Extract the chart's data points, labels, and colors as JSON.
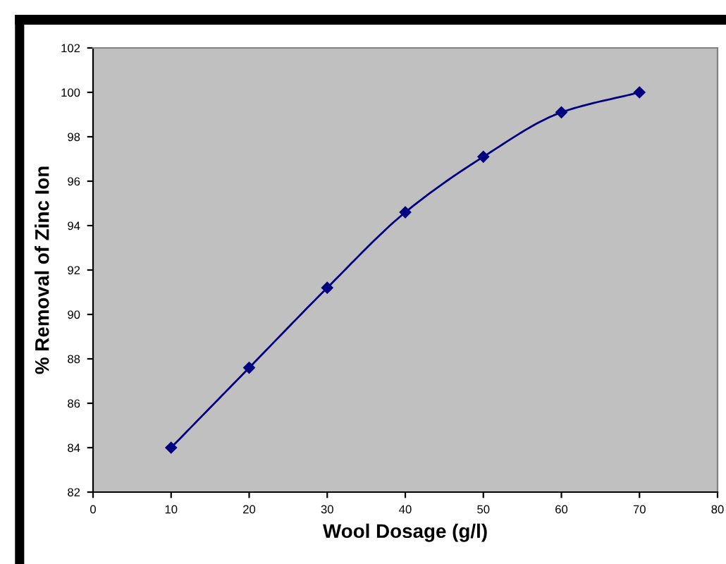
{
  "chart_data": {
    "type": "line",
    "xlabel": "Wool Dosage (g/l)",
    "ylabel": "% Removal of Zinc Ion",
    "x": [
      10,
      20,
      30,
      40,
      50,
      60,
      70
    ],
    "series": [
      {
        "color": "#000080",
        "values": [
          84.0,
          87.6,
          91.2,
          94.6,
          97.1,
          99.1,
          100.0
        ]
      }
    ],
    "xlim": [
      0,
      80
    ],
    "xticks": [
      0,
      10,
      20,
      30,
      40,
      50,
      60,
      70,
      80
    ],
    "ylim": [
      82,
      102
    ],
    "yticks": [
      82,
      84,
      86,
      88,
      90,
      92,
      94,
      96,
      98,
      100,
      102
    ],
    "marker": "diamond",
    "line_style": "solid",
    "grid": false,
    "legend": false
  }
}
